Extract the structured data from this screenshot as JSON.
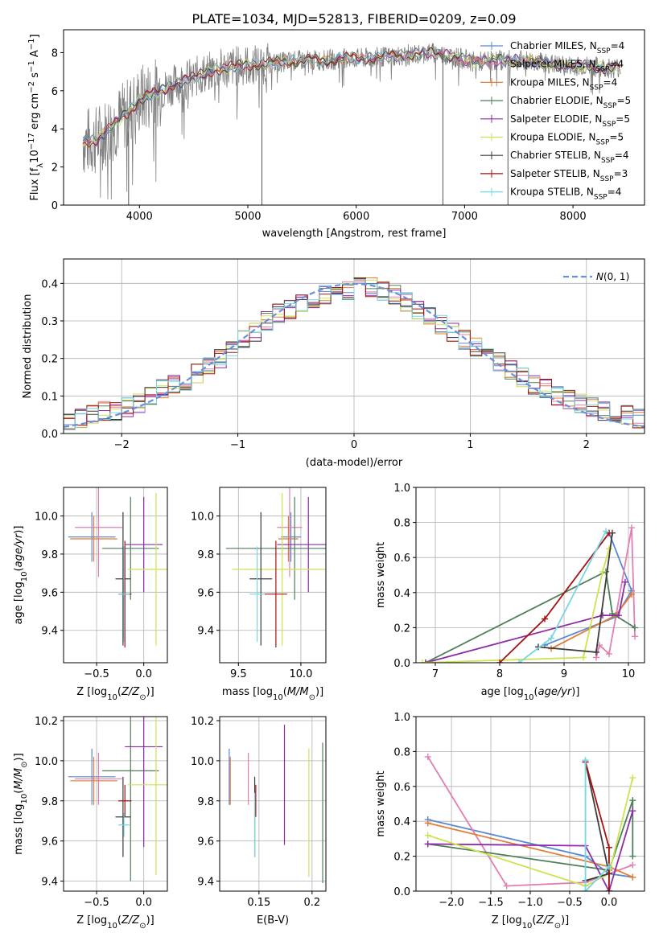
{
  "title": "PLATE=1034, MJD=52813, FIBERID=0209, z=0.09",
  "colors": {
    "chabrier_miles": "#5b87d4",
    "salpeter_miles": "#e07fb2",
    "kroupa_miles": "#e17d34",
    "chabrier_elodie": "#4e7f5a",
    "salpeter_elodie": "#8e2aa6",
    "kroupa_elodie": "#cde34f",
    "chabrier_stelib": "#3c3c3c",
    "salpeter_stelib": "#a51212",
    "kroupa_stelib": "#76d6e4",
    "gauss": "#6a8fdb",
    "data": "#808080"
  },
  "chart_data": [
    {
      "id": "spectrum",
      "type": "line",
      "xlabel": "wavelength [Angstrom, rest frame]",
      "ylabel": "Flux [f_λ 10^-17 erg cm^-2 s^-1 A^-1]",
      "xlim": [
        3300,
        8660
      ],
      "ylim": [
        0,
        9.2
      ],
      "xticks": [
        4000,
        5000,
        6000,
        7000,
        8000
      ],
      "yticks": [
        0,
        2,
        4,
        6,
        8
      ],
      "grid": false,
      "legend": "upper-right",
      "continuum": [
        [
          3480,
          3.3
        ],
        [
          3600,
          3.4
        ],
        [
          3700,
          3.9
        ],
        [
          3800,
          4.4
        ],
        [
          3900,
          4.9
        ],
        [
          4000,
          5.5
        ],
        [
          4100,
          5.8
        ],
        [
          4200,
          6.0
        ],
        [
          4300,
          6.3
        ],
        [
          4500,
          6.7
        ],
        [
          4700,
          7.1
        ],
        [
          4900,
          7.3
        ],
        [
          5100,
          7.4
        ],
        [
          5300,
          7.5
        ],
        [
          5500,
          7.6
        ],
        [
          5700,
          7.6
        ],
        [
          5900,
          7.7
        ],
        [
          6100,
          7.7
        ],
        [
          6300,
          7.8
        ],
        [
          6500,
          7.9
        ],
        [
          6700,
          8.0
        ],
        [
          6900,
          7.8
        ],
        [
          7100,
          7.5
        ],
        [
          7300,
          7.6
        ],
        [
          7500,
          7.6
        ],
        [
          7700,
          7.5
        ],
        [
          7900,
          7.3
        ],
        [
          8100,
          7.3
        ],
        [
          8300,
          7.2
        ],
        [
          8440,
          7.2
        ]
      ],
      "dips": [
        {
          "x": 5130,
          "y": 0
        },
        {
          "x": 6800,
          "y": 0
        },
        {
          "x": 7400,
          "y": 0
        },
        {
          "x": 3900,
          "y": 0
        }
      ],
      "legend_entries": [
        {
          "name": "Chabrier MILES",
          "n": 4
        },
        {
          "name": "Salpeter MILES",
          "n": 4
        },
        {
          "name": "Kroupa MILES",
          "n": 4
        },
        {
          "name": "Chabrier ELODIE",
          "n": 5
        },
        {
          "name": "Salpeter ELODIE",
          "n": 5
        },
        {
          "name": "Kroupa ELODIE",
          "n": 5
        },
        {
          "name": "Chabrier STELIB",
          "n": 4
        },
        {
          "name": "Salpeter STELIB",
          "n": 3
        },
        {
          "name": "Kroupa STELIB",
          "n": 4
        }
      ]
    },
    {
      "id": "residuals",
      "type": "line",
      "xlabel": "(data-model)/error",
      "ylabel": "Normed distribution",
      "xlim": [
        -2.5,
        2.5
      ],
      "ylim": [
        0,
        0.465
      ],
      "xticks": [
        -2,
        -1,
        0,
        1,
        2
      ],
      "yticks": [
        0.0,
        0.1,
        0.2,
        0.3,
        0.4
      ],
      "grid": true,
      "legend": "upper-right",
      "legend_label": "N(0,1)",
      "bins": [
        -2.5,
        -2.4,
        -2.3,
        -2.2,
        -2.1,
        -2.0,
        -1.9,
        -1.8,
        -1.7,
        -1.6,
        -1.5,
        -1.4,
        -1.3,
        -1.2,
        -1.1,
        -1.0,
        -0.9,
        -0.8,
        -0.7,
        -0.6,
        -0.5,
        -0.4,
        -0.3,
        -0.2,
        -0.1,
        0.0,
        0.1,
        0.2,
        0.3,
        0.4,
        0.5,
        0.6,
        0.7,
        0.8,
        0.9,
        1.0,
        1.1,
        1.2,
        1.3,
        1.4,
        1.5,
        1.6,
        1.7,
        1.8,
        1.9,
        2.0,
        2.1,
        2.2,
        2.3,
        2.4,
        2.5
      ],
      "hist_base": [
        0.03,
        0.04,
        0.05,
        0.06,
        0.06,
        0.07,
        0.08,
        0.1,
        0.12,
        0.13,
        0.14,
        0.16,
        0.18,
        0.2,
        0.22,
        0.25,
        0.27,
        0.3,
        0.32,
        0.33,
        0.35,
        0.36,
        0.37,
        0.38,
        0.38,
        0.39,
        0.39,
        0.38,
        0.37,
        0.35,
        0.33,
        0.31,
        0.29,
        0.27,
        0.25,
        0.23,
        0.21,
        0.19,
        0.17,
        0.15,
        0.13,
        0.12,
        0.1,
        0.09,
        0.08,
        0.07,
        0.06,
        0.05,
        0.05,
        0.04
      ]
    },
    {
      "id": "age_vs_Z",
      "type": "scatter",
      "xlabel": "Z [log10(Z/Z_sun)]",
      "ylabel": "age [log10(age/yr)]",
      "xlim": [
        -0.85,
        0.25
      ],
      "ylim": [
        9.23,
        10.15
      ],
      "xticks": [
        -0.5,
        0.0
      ],
      "yticks": [
        9.4,
        9.6,
        9.8,
        10.0
      ],
      "grid": true,
      "points": [
        {
          "c": "chabrier_miles",
          "x": -0.55,
          "xe": 0.25,
          "y": 9.89,
          "ye": 0.13
        },
        {
          "c": "salpeter_miles",
          "x": -0.48,
          "xe": 0.25,
          "y": 9.94,
          "ye": 0.26
        },
        {
          "c": "kroupa_miles",
          "x": -0.53,
          "xe": 0.25,
          "y": 9.88,
          "ye": 0.12
        },
        {
          "c": "chabrier_elodie",
          "x": -0.14,
          "xe": 0.3,
          "y": 9.83,
          "ye": 0.27
        },
        {
          "c": "salpeter_elodie",
          "x": 0.0,
          "xe": 0.2,
          "y": 9.85,
          "ye": 0.25
        },
        {
          "c": "kroupa_elodie",
          "x": 0.13,
          "xe": 0.3,
          "y": 9.72,
          "ye": 0.4
        },
        {
          "c": "chabrier_stelib",
          "x": -0.22,
          "xe": 0.08,
          "y": 9.67,
          "ye": 0.35
        },
        {
          "c": "salpeter_stelib",
          "x": -0.2,
          "xe": 0.07,
          "y": 9.59,
          "ye": 0.28
        },
        {
          "c": "kroupa_stelib",
          "x": -0.21,
          "xe": 0.06,
          "y": 9.59,
          "ye": 0.25
        }
      ]
    },
    {
      "id": "age_vs_mass",
      "type": "scatter",
      "xlabel": "mass [log10(M/M_sun)]",
      "ylabel": "",
      "xlim": [
        9.35,
        10.2
      ],
      "ylim": [
        9.23,
        10.15
      ],
      "xticks": [
        9.5,
        10.0
      ],
      "yticks": [
        9.4,
        9.6,
        9.8,
        10.0
      ],
      "grid": true,
      "points": [
        {
          "c": "chabrier_miles",
          "x": 9.92,
          "xe": 0.08,
          "y": 9.89,
          "ye": 0.13
        },
        {
          "c": "salpeter_miles",
          "x": 9.91,
          "xe": 0.1,
          "y": 9.94,
          "ye": 0.26
        },
        {
          "c": "kroupa_miles",
          "x": 9.9,
          "xe": 0.08,
          "y": 9.88,
          "ye": 0.12
        },
        {
          "c": "chabrier_elodie",
          "x": 9.95,
          "xe": 0.55,
          "y": 9.83,
          "ye": 0.27
        },
        {
          "c": "salpeter_elodie",
          "x": 10.06,
          "xe": 0.25,
          "y": 9.85,
          "ye": 0.25
        },
        {
          "c": "kroupa_elodie",
          "x": 9.85,
          "xe": 0.4,
          "y": 9.72,
          "ye": 0.4
        },
        {
          "c": "chabrier_stelib",
          "x": 9.68,
          "xe": 0.09,
          "y": 9.67,
          "ye": 0.35
        },
        {
          "c": "salpeter_stelib",
          "x": 9.8,
          "xe": 0.09,
          "y": 9.59,
          "ye": 0.28
        },
        {
          "c": "kroupa_stelib",
          "x": 9.65,
          "xe": 0.06,
          "y": 9.59,
          "ye": 0.25
        }
      ]
    },
    {
      "id": "weight_vs_age",
      "type": "line",
      "xlabel": "age [log10(age/yr)]",
      "ylabel": "mass weight",
      "xlim": [
        6.7,
        10.25
      ],
      "ylim": [
        0,
        1.0
      ],
      "xticks": [
        7,
        8,
        9,
        10
      ],
      "yticks": [
        0.0,
        0.2,
        0.4,
        0.6,
        0.8,
        1.0
      ],
      "grid": true,
      "series": [
        {
          "c": "chabrier_miles",
          "pts": [
            [
              8.7,
              0.1
            ],
            [
              9.8,
              0.26
            ],
            [
              10.05,
              0.41
            ],
            [
              9.7,
              0.74
            ]
          ]
        },
        {
          "c": "salpeter_miles",
          "pts": [
            [
              9.5,
              0.03
            ],
            [
              9.55,
              0.1
            ],
            [
              9.7,
              0.05
            ],
            [
              10.05,
              0.77
            ],
            [
              10.1,
              0.15
            ]
          ]
        },
        {
          "c": "kroupa_miles",
          "pts": [
            [
              8.8,
              0.08
            ],
            [
              9.8,
              0.27
            ],
            [
              10.05,
              0.39
            ]
          ]
        },
        {
          "c": "chabrier_elodie",
          "pts": [
            [
              6.85,
              0.0
            ],
            [
              9.65,
              0.52
            ],
            [
              9.75,
              0.28
            ],
            [
              10.1,
              0.2
            ]
          ]
        },
        {
          "c": "salpeter_elodie",
          "pts": [
            [
              6.85,
              0.0
            ],
            [
              9.6,
              0.27
            ],
            [
              9.85,
              0.27
            ],
            [
              9.95,
              0.46
            ]
          ]
        },
        {
          "c": "kroupa_elodie",
          "pts": [
            [
              6.8,
              0.0
            ],
            [
              9.3,
              0.03
            ],
            [
              9.6,
              0.52
            ],
            [
              9.7,
              0.65
            ]
          ]
        },
        {
          "c": "chabrier_stelib",
          "pts": [
            [
              8.6,
              0.09
            ],
            [
              9.5,
              0.06
            ],
            [
              9.75,
              0.74
            ]
          ]
        },
        {
          "c": "salpeter_stelib",
          "pts": [
            [
              8.0,
              0.0
            ],
            [
              8.7,
              0.25
            ],
            [
              9.7,
              0.74
            ]
          ]
        },
        {
          "c": "kroupa_stelib",
          "pts": [
            [
              8.3,
              0.0
            ],
            [
              8.8,
              0.14
            ],
            [
              9.65,
              0.75
            ]
          ]
        }
      ]
    },
    {
      "id": "mass_vs_Z",
      "type": "scatter",
      "xlabel": "Z [log10(Z/Z_sun)]",
      "ylabel": "mass [log10(M/M_sun)]",
      "xlim": [
        -0.85,
        0.25
      ],
      "ylim": [
        9.35,
        10.22
      ],
      "xticks": [
        -0.5,
        0.0
      ],
      "yticks": [
        9.4,
        9.6,
        9.8,
        10.0,
        10.2
      ],
      "grid": true,
      "points": [
        {
          "c": "chabrier_miles",
          "x": -0.55,
          "xe": 0.25,
          "y": 9.92,
          "ye": 0.14
        },
        {
          "c": "salpeter_miles",
          "x": -0.48,
          "xe": 0.25,
          "y": 9.91,
          "ye": 0.13
        },
        {
          "c": "kroupa_miles",
          "x": -0.53,
          "xe": 0.25,
          "y": 9.9,
          "ye": 0.12
        },
        {
          "c": "chabrier_elodie",
          "x": -0.14,
          "xe": 0.3,
          "y": 9.95,
          "ye": 0.55
        },
        {
          "c": "salpeter_elodie",
          "x": 0.0,
          "xe": 0.2,
          "y": 10.07,
          "ye": 0.5
        },
        {
          "c": "kroupa_elodie",
          "x": 0.13,
          "xe": 0.3,
          "y": 9.88,
          "ye": 0.45
        },
        {
          "c": "chabrier_stelib",
          "x": -0.22,
          "xe": 0.08,
          "y": 9.72,
          "ye": 0.2
        },
        {
          "c": "salpeter_stelib",
          "x": -0.2,
          "xe": 0.07,
          "y": 9.8,
          "ye": 0.08
        },
        {
          "c": "kroupa_stelib",
          "x": -0.21,
          "xe": 0.06,
          "y": 9.68,
          "ye": 0.06
        }
      ]
    },
    {
      "id": "mass_vs_ebv",
      "type": "scatter",
      "xlabel": "E(B-V)",
      "ylabel": "",
      "xlim": [
        0.113,
        0.213
      ],
      "ylim": [
        9.35,
        10.22
      ],
      "xticks": [
        0.15,
        0.2
      ],
      "yticks": [
        9.4,
        9.6,
        9.8,
        10.0,
        10.2
      ],
      "grid": true,
      "points": [
        {
          "c": "chabrier_miles",
          "x": 0.122,
          "y": 9.92,
          "ye": 0.14
        },
        {
          "c": "kroupa_miles",
          "x": 0.123,
          "y": 9.9,
          "ye": 0.12
        },
        {
          "c": "salpeter_miles",
          "x": 0.14,
          "y": 9.91,
          "ye": 0.13
        },
        {
          "c": "chabrier_stelib",
          "x": 0.146,
          "y": 9.72,
          "ye": 0.2
        },
        {
          "c": "salpeter_stelib",
          "x": 0.147,
          "y": 9.8,
          "ye": 0.08
        },
        {
          "c": "kroupa_stelib",
          "x": 0.146,
          "y": 9.68,
          "ye": 0.16
        },
        {
          "c": "salpeter_elodie",
          "x": 0.174,
          "y": 9.88,
          "ye": 0.3
        },
        {
          "c": "kroupa_elodie",
          "x": 0.197,
          "y": 9.74,
          "ye": 0.32
        },
        {
          "c": "chabrier_elodie",
          "x": 0.21,
          "y": 9.74,
          "ye": 0.35
        }
      ]
    },
    {
      "id": "weight_vs_Z",
      "type": "line",
      "xlabel": "Z [log10(Z/Z_sun)]",
      "ylabel": "mass weight",
      "xlim": [
        -2.45,
        0.45
      ],
      "ylim": [
        0,
        1.0
      ],
      "xticks": [
        -2.0,
        -1.5,
        -1.0,
        -0.5,
        0.0
      ],
      "yticks": [
        0.0,
        0.2,
        0.4,
        0.6,
        0.8,
        1.0
      ],
      "grid": true,
      "series": [
        {
          "c": "chabrier_miles",
          "pts": [
            [
              -2.3,
              0.41
            ],
            [
              -0.3,
              0.2
            ],
            [
              0.0,
              0.1
            ],
            [
              0.3,
              0.08
            ]
          ]
        },
        {
          "c": "salpeter_miles",
          "pts": [
            [
              -2.3,
              0.77
            ],
            [
              -1.3,
              0.03
            ],
            [
              -0.3,
              0.05
            ],
            [
              0.0,
              0.1
            ],
            [
              0.3,
              0.15
            ]
          ]
        },
        {
          "c": "kroupa_miles",
          "pts": [
            [
              -2.3,
              0.39
            ],
            [
              0.0,
              0.14
            ],
            [
              0.3,
              0.08
            ]
          ]
        },
        {
          "c": "chabrier_elodie",
          "pts": [
            [
              -2.3,
              0.27
            ],
            [
              0.0,
              0.12
            ],
            [
              0.3,
              0.52
            ],
            [
              0.3,
              0.2
            ]
          ]
        },
        {
          "c": "salpeter_elodie",
          "pts": [
            [
              -2.3,
              0.27
            ],
            [
              -0.3,
              0.26
            ],
            [
              0.0,
              0.0
            ],
            [
              0.3,
              0.46
            ]
          ]
        },
        {
          "c": "kroupa_elodie",
          "pts": [
            [
              -2.3,
              0.32
            ],
            [
              -0.3,
              0.03
            ],
            [
              0.0,
              0.1
            ],
            [
              0.3,
              0.65
            ]
          ]
        },
        {
          "c": "chabrier_stelib",
          "pts": [
            [
              -0.3,
              0.06
            ],
            [
              0.0,
              0.1
            ],
            [
              -0.3,
              0.74
            ]
          ]
        },
        {
          "c": "salpeter_stelib",
          "pts": [
            [
              -0.3,
              0.74
            ],
            [
              0.0,
              0.25
            ],
            [
              0.0,
              0.0
            ]
          ]
        },
        {
          "c": "kroupa_stelib",
          "pts": [
            [
              -0.3,
              0.75
            ],
            [
              -0.3,
              0.0
            ],
            [
              0.0,
              0.14
            ]
          ]
        }
      ]
    }
  ]
}
